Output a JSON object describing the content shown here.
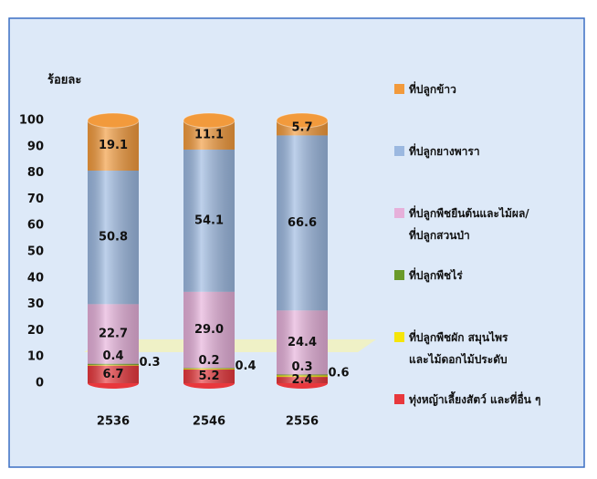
{
  "chart_data": {
    "type": "bar",
    "stacked": true,
    "y_label": "ร้อยละ",
    "categories": [
      "2536",
      "2546",
      "2556"
    ],
    "ylim": [
      0,
      100
    ],
    "yticks": [
      0,
      10,
      20,
      30,
      40,
      50,
      60,
      70,
      80,
      90,
      100
    ],
    "series": [
      {
        "name": "ทุ่งหญ้าเลี้ยงสัตว์ และที่อื่น ๆ",
        "color": "#e8383d",
        "values": [
          6.7,
          5.2,
          2.4
        ],
        "value_labels": [
          "6.7",
          "5.2",
          "2.4"
        ]
      },
      {
        "name": "ที่ปลูกพืชผัก สมุนไพร\nและไม้ดอกไม้ประดับ",
        "color": "#f5e50a",
        "values": [
          0.3,
          0.4,
          0.6
        ],
        "value_labels": [
          "0.3",
          "0.4",
          "0.6"
        ]
      },
      {
        "name": "ที่ปลูกพืชไร่",
        "color": "#6a9a2a",
        "values": [
          0.4,
          0.2,
          0.3
        ],
        "value_labels": [
          "0.4",
          "0.2",
          "0.3"
        ]
      },
      {
        "name": "ที่ปลูกพืชยืนต้นและไม้ผล/\nที่ปลูกสวนป่า",
        "color": "#e6b0da",
        "values": [
          22.7,
          29.0,
          24.4
        ],
        "value_labels": [
          "22.7",
          "29.0",
          "24.4"
        ]
      },
      {
        "name": "ที่ปลูกยางพารา",
        "color": "#9bb8e0",
        "values": [
          50.8,
          54.1,
          66.6
        ],
        "value_labels": [
          "50.8",
          "54.1",
          "66.6"
        ]
      },
      {
        "name": "ที่ปลูกข้าว",
        "color": "#f29a3c",
        "values": [
          19.1,
          11.1,
          5.7
        ],
        "value_labels": [
          "19.1",
          "11.1",
          "5.7"
        ]
      }
    ]
  }
}
